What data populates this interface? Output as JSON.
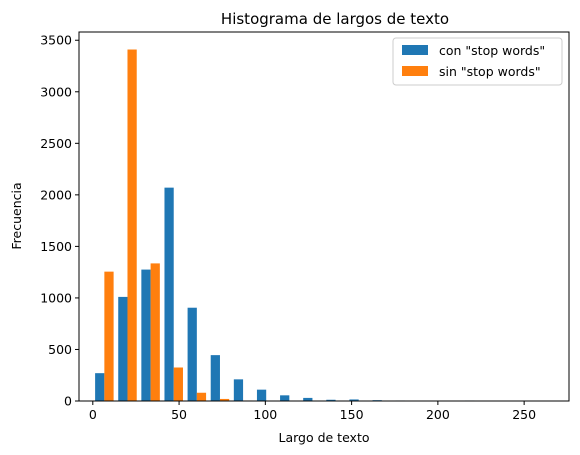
{
  "chart_data": {
    "type": "bar",
    "title": "Histograma de largos de texto",
    "xlabel": "Largo de texto",
    "ylabel": "Frecuencia",
    "bin_width": 13.4,
    "x_bins_start": [
      0,
      13.4,
      26.8,
      40.2,
      53.6,
      67.0,
      80.4,
      93.8,
      107.2,
      120.6,
      134.0,
      147.4,
      160.8,
      174.2,
      187.6,
      201.0,
      214.4,
      227.8,
      241.2,
      254.6
    ],
    "series": [
      {
        "name": "con \"stop words\"",
        "color": "#1f77b4",
        "values": [
          270,
          1010,
          1275,
          2070,
          905,
          445,
          210,
          110,
          55,
          30,
          12,
          15,
          8,
          5,
          3,
          2,
          5,
          0,
          0,
          0
        ]
      },
      {
        "name": "sin \"stop words\"",
        "color": "#ff7f0e",
        "values": [
          1255,
          3410,
          1335,
          325,
          80,
          20,
          5,
          2,
          0,
          0,
          0,
          0,
          0,
          0,
          0,
          0,
          0,
          0,
          0,
          0
        ]
      }
    ],
    "xlim": [
      -8,
      276
    ],
    "ylim": [
      0,
      3580
    ],
    "x_ticks": [
      0,
      50,
      100,
      150,
      200,
      250
    ],
    "y_ticks": [
      0,
      500,
      1000,
      1500,
      2000,
      2500,
      3000,
      3500
    ],
    "legend_position": "top-right",
    "grid": false
  }
}
